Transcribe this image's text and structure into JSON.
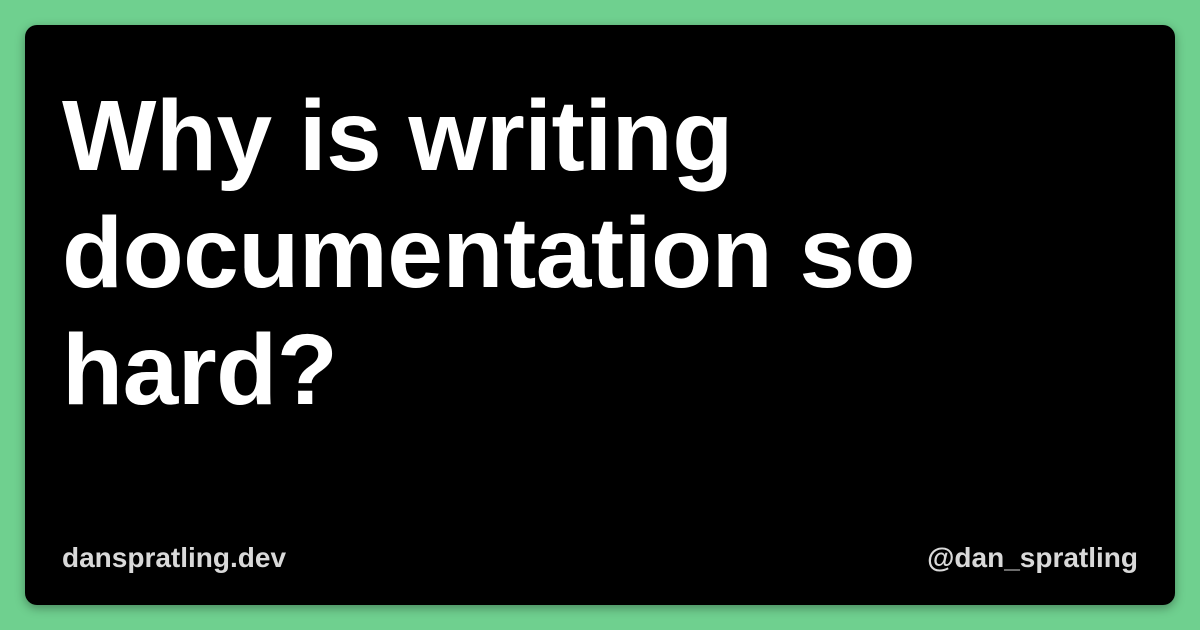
{
  "colors": {
    "background": "#6fd08f",
    "card": "#000000",
    "title_text": "#ffffff",
    "footer_text": "#d9d9d9"
  },
  "card": {
    "title": "Why is writing documentation so hard?",
    "site": "danspratling.dev",
    "handle": "@dan_spratling"
  }
}
